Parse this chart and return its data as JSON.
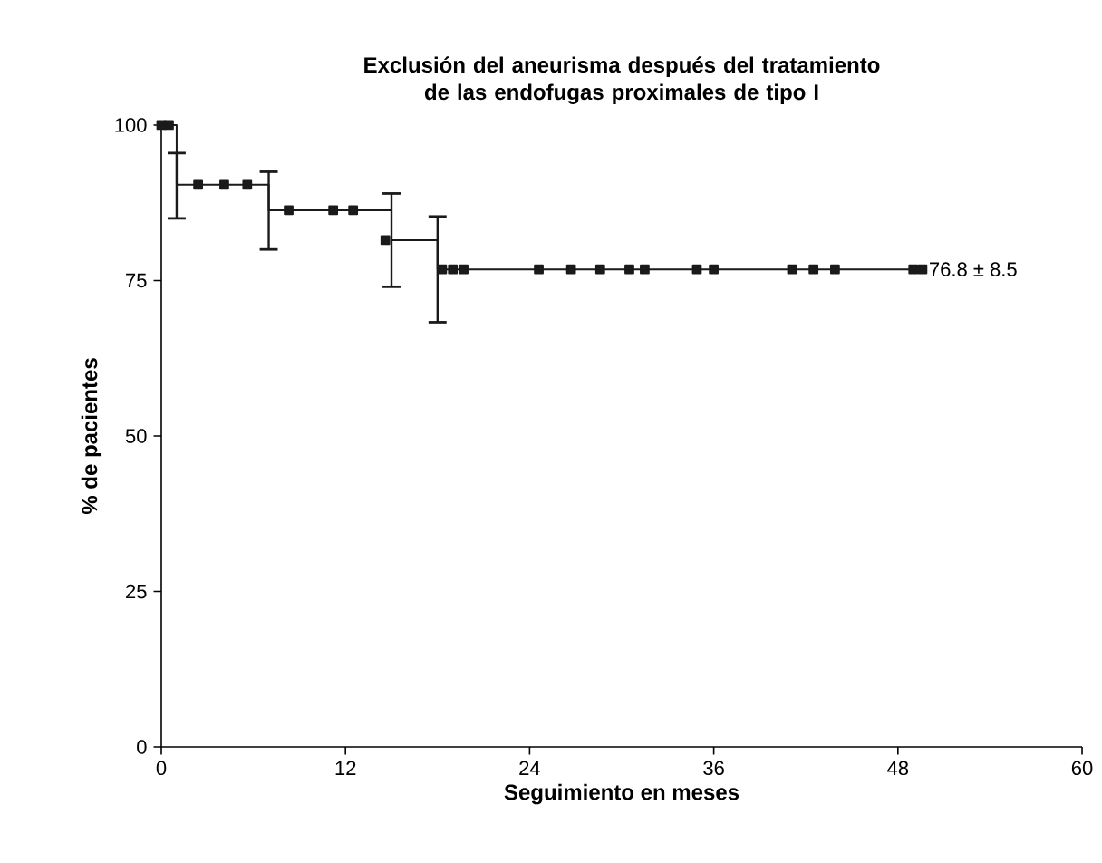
{
  "chart_data": {
    "type": "step",
    "title": "Exclusión del aneurisma después del tratamiento de las endofugas proximales de tipo I",
    "xlabel": "Seguimiento en meses",
    "ylabel": "% de pacientes",
    "xlim": [
      0,
      60
    ],
    "xticks": [
      0,
      12,
      24,
      36,
      48,
      60
    ],
    "ylim": [
      0,
      100
    ],
    "yticks": [
      0,
      25,
      50,
      75,
      100
    ],
    "series": [
      {
        "color": "#1a1a1a",
        "marker": "none",
        "x": [
          0,
          1,
          7,
          15,
          18,
          49.6
        ],
        "values": [
          100,
          90.4,
          86.3,
          81.5,
          76.8,
          76.8
        ],
        "errors": [
          null,
          [
            85,
            95.5
          ],
          [
            80,
            92.5
          ],
          [
            74,
            89
          ],
          [
            68.3,
            85.3
          ],
          null
        ]
      },
      {
        "type": "scatter",
        "color": "#1a1a1a",
        "marker": "square",
        "x": [
          0,
          0.5,
          2.4,
          4.1,
          5.6,
          8.3,
          11.2,
          12.5,
          14.6,
          18.3,
          19.0,
          19.7,
          24.6,
          26.7,
          28.6,
          30.5,
          31.5,
          34.9,
          36.0,
          41.1,
          42.5,
          43.9,
          49.0,
          49.6
        ],
        "values": [
          100,
          100,
          90.4,
          90.4,
          90.4,
          86.3,
          86.3,
          86.3,
          81.5,
          76.8,
          76.8,
          76.8,
          76.8,
          76.8,
          76.8,
          76.8,
          76.8,
          76.8,
          76.8,
          76.8,
          76.8,
          76.8,
          76.8,
          76.8
        ]
      }
    ],
    "annotations": [
      {
        "text": "76.8 ± 8.5",
        "x": 49.6,
        "y": 76.8
      }
    ]
  }
}
